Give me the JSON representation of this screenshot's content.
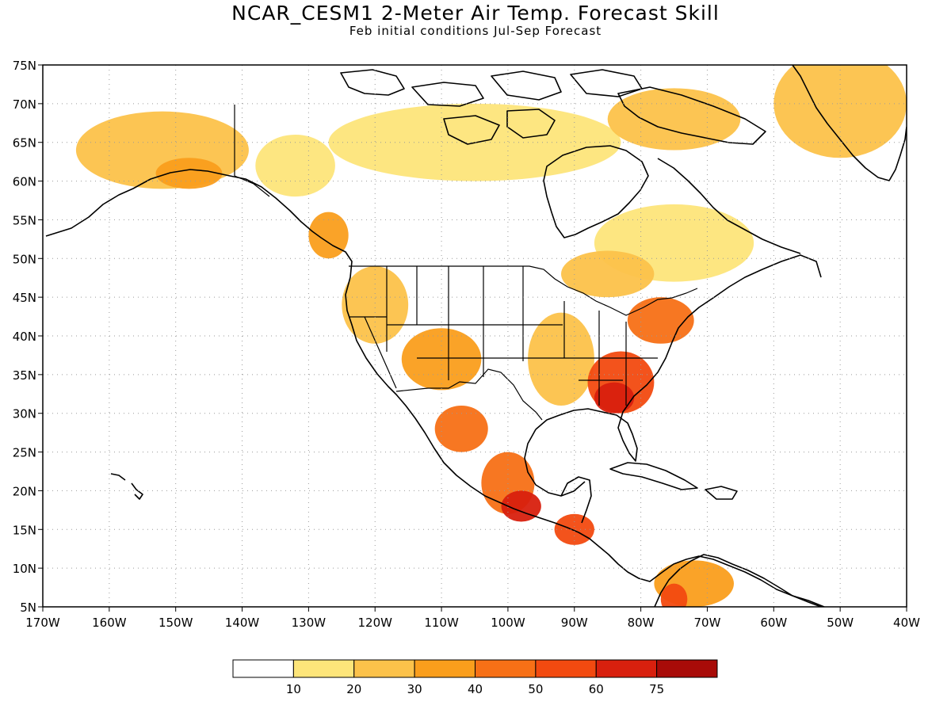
{
  "title": "NCAR_CESM1 2-Meter Air Temp. Forecast Skill",
  "subtitle": "Feb initial conditions  Jul-Sep Forecast",
  "map": {
    "lon_range": [
      -170,
      -40
    ],
    "lat_range": [
      5,
      75
    ],
    "lon_ticks": [
      -170,
      -160,
      -150,
      -140,
      -130,
      -120,
      -110,
      -100,
      -90,
      -80,
      -70,
      -60,
      -50,
      -40
    ],
    "lon_labels": [
      "170W",
      "160W",
      "150W",
      "140W",
      "130W",
      "120W",
      "110W",
      "100W",
      "90W",
      "80W",
      "70W",
      "60W",
      "50W",
      "40W"
    ],
    "lat_ticks": [
      5,
      10,
      15,
      20,
      25,
      30,
      35,
      40,
      45,
      50,
      55,
      60,
      65,
      70,
      75
    ],
    "lat_labels": [
      "5N",
      "10N",
      "15N",
      "20N",
      "25N",
      "30N",
      "35N",
      "40N",
      "45N",
      "50N",
      "55N",
      "60N",
      "65N",
      "70N",
      "75N"
    ],
    "grid": "dotted"
  },
  "legend": {
    "colors": [
      "#ffffff",
      "#fde57a",
      "#fcc24a",
      "#fa9e1c",
      "#f77016",
      "#f24a10",
      "#d8200e",
      "#a80b08"
    ],
    "labels": [
      "10",
      "20",
      "30",
      "40",
      "50",
      "60",
      "75"
    ],
    "thresholds": [
      10,
      20,
      30,
      40,
      50,
      60,
      75
    ]
  },
  "skill_regions": [
    {
      "name": "Alaska",
      "lon": -152,
      "lat": 64,
      "rx": 13,
      "ry": 5,
      "value": 25
    },
    {
      "name": "Alaska south",
      "lon": -148,
      "lat": 61,
      "rx": 5,
      "ry": 2,
      "value": 35
    },
    {
      "name": "Yukon",
      "lon": -132,
      "lat": 62,
      "rx": 6,
      "ry": 4,
      "value": 15
    },
    {
      "name": "BC coast",
      "lon": -127,
      "lat": 53,
      "rx": 3,
      "ry": 3,
      "value": 30
    },
    {
      "name": "Canadian Arctic",
      "lon": -105,
      "lat": 65,
      "rx": 22,
      "ry": 5,
      "value": 15
    },
    {
      "name": "Baffin",
      "lon": -75,
      "lat": 68,
      "rx": 10,
      "ry": 4,
      "value": 20
    },
    {
      "name": "Quebec",
      "lon": -75,
      "lat": 52,
      "rx": 12,
      "ry": 5,
      "value": 15
    },
    {
      "name": "Ontario",
      "lon": -85,
      "lat": 48,
      "rx": 7,
      "ry": 3,
      "value": 25
    },
    {
      "name": "Greenland",
      "lon": -50,
      "lat": 70,
      "rx": 10,
      "ry": 7,
      "value": 25
    },
    {
      "name": "US West",
      "lon": -120,
      "lat": 44,
      "rx": 5,
      "ry": 5,
      "value": 25
    },
    {
      "name": "US Southwest",
      "lon": -110,
      "lat": 37,
      "rx": 6,
      "ry": 4,
      "value": 30
    },
    {
      "name": "US Mississippi",
      "lon": -92,
      "lat": 37,
      "rx": 5,
      "ry": 6,
      "value": 20
    },
    {
      "name": "US Northeast",
      "lon": -77,
      "lat": 42,
      "rx": 5,
      "ry": 3,
      "value": 45
    },
    {
      "name": "US Southeast",
      "lon": -83,
      "lat": 34,
      "rx": 5,
      "ry": 4,
      "value": 50
    },
    {
      "name": "Georgia",
      "lon": -84,
      "lat": 32,
      "rx": 3,
      "ry": 2,
      "value": 60
    },
    {
      "name": "Mexico north",
      "lon": -107,
      "lat": 28,
      "rx": 4,
      "ry": 3,
      "value": 45
    },
    {
      "name": "Mexico",
      "lon": -100,
      "lat": 21,
      "rx": 4,
      "ry": 4,
      "value": 45
    },
    {
      "name": "Mexico south",
      "lon": -98,
      "lat": 18,
      "rx": 3,
      "ry": 2,
      "value": 60
    },
    {
      "name": "Central America",
      "lon": -90,
      "lat": 15,
      "rx": 3,
      "ry": 2,
      "value": 55
    },
    {
      "name": "Venezuela",
      "lon": -72,
      "lat": 8,
      "rx": 6,
      "ry": 3,
      "value": 30
    },
    {
      "name": "Colombia",
      "lon": -75,
      "lat": 6,
      "rx": 2,
      "ry": 2,
      "value": 50
    }
  ]
}
